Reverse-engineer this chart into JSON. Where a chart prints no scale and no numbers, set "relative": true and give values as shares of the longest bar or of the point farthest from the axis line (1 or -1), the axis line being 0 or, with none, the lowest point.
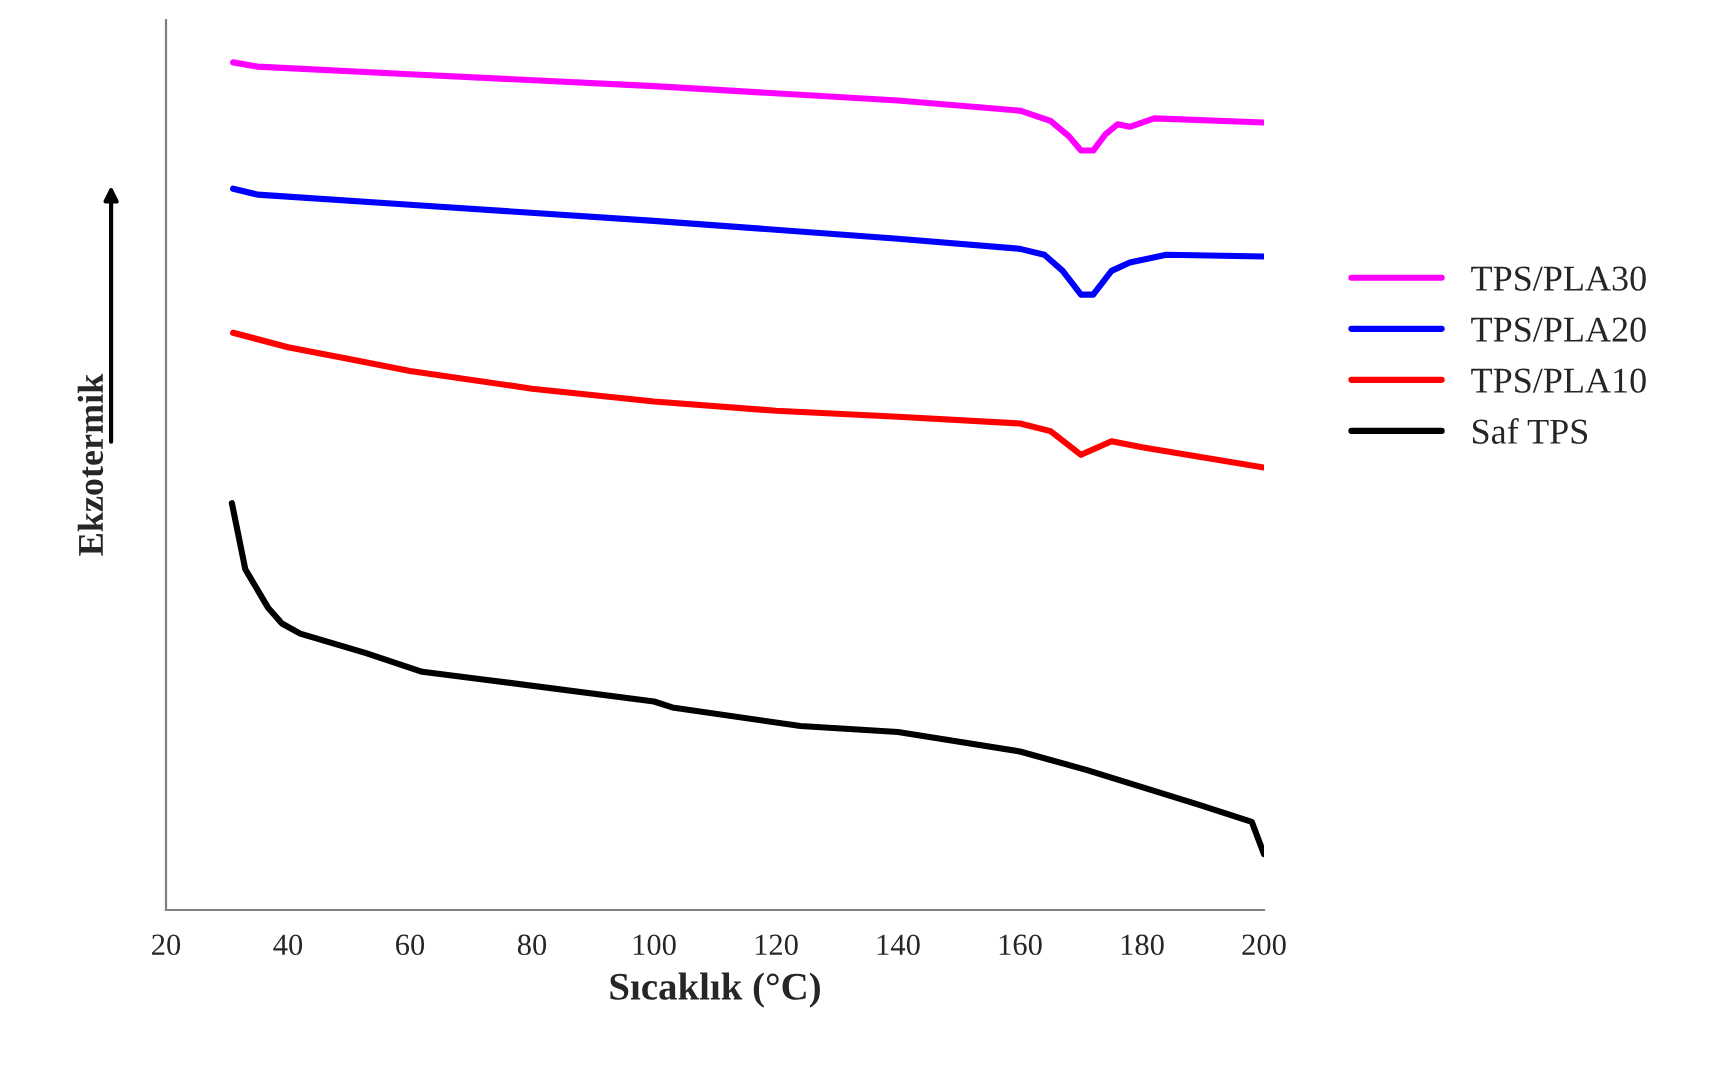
{
  "chart_data": {
    "type": "line",
    "relative": true,
    "xlabel": "Sıcaklık (°C)",
    "ylabel": "Ekzotermik",
    "xlim": [
      20,
      200
    ],
    "xticks": [
      20,
      40,
      60,
      80,
      100,
      120,
      140,
      160,
      180,
      200
    ],
    "grid": false,
    "legend": "right",
    "line_style": "solid",
    "marker": "none",
    "series": [
      {
        "name": "TPS/PLA30",
        "color": "#ff00ff",
        "x": [
          31,
          35,
          60,
          100,
          140,
          160,
          165,
          168,
          170,
          172,
          174,
          176,
          178,
          182,
          200
        ],
        "values": [
          1.0,
          0.995,
          0.986,
          0.972,
          0.955,
          0.943,
          0.931,
          0.913,
          0.896,
          0.896,
          0.915,
          0.927,
          0.924,
          0.934,
          0.929
        ]
      },
      {
        "name": "TPS/PLA20",
        "color": "#0000ff",
        "x": [
          31,
          35,
          60,
          100,
          140,
          160,
          164,
          167,
          170,
          172,
          175,
          178,
          184,
          200
        ],
        "values": [
          0.851,
          0.844,
          0.832,
          0.813,
          0.792,
          0.78,
          0.773,
          0.754,
          0.726,
          0.726,
          0.754,
          0.764,
          0.773,
          0.771
        ]
      },
      {
        "name": "TPS/PLA10",
        "color": "#ff0000",
        "x": [
          31,
          40,
          50,
          60,
          80,
          100,
          120,
          140,
          160,
          165,
          170,
          175,
          180,
          200
        ],
        "values": [
          0.681,
          0.664,
          0.65,
          0.636,
          0.615,
          0.6,
          0.589,
          0.582,
          0.574,
          0.565,
          0.537,
          0.553,
          0.546,
          0.522
        ]
      },
      {
        "name": "Saf TPS",
        "color": "#000000",
        "x": [
          30.8,
          33,
          36.7,
          39,
          42,
          52.8,
          62,
          72,
          100,
          103,
          124,
          140,
          160,
          171,
          189,
          198,
          200
        ],
        "values": [
          0.48,
          0.402,
          0.357,
          0.338,
          0.326,
          0.303,
          0.281,
          0.272,
          0.246,
          0.239,
          0.217,
          0.21,
          0.187,
          0.165,
          0.125,
          0.104,
          0.066
        ]
      }
    ]
  }
}
